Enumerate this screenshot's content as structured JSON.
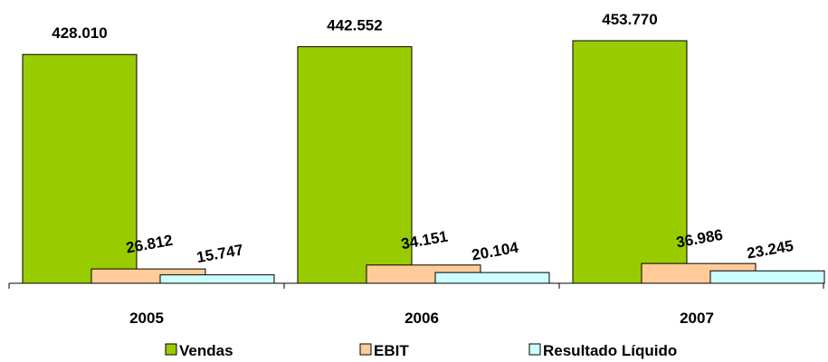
{
  "chart_data": {
    "type": "bar",
    "categories": [
      "2005",
      "2006",
      "2007"
    ],
    "series": [
      {
        "name": "Vendas",
        "values": [
          428010,
          442552,
          453770
        ],
        "labels": [
          "428.010",
          "442.552",
          "453.770"
        ],
        "color": "#99CC00"
      },
      {
        "name": "EBIT",
        "values": [
          26812,
          34151,
          36986
        ],
        "labels": [
          "26.812",
          "34.151",
          "36.986"
        ],
        "color": "#FFCC99"
      },
      {
        "name": "Resultado Líquido",
        "values": [
          15747,
          20104,
          23245
        ],
        "labels": [
          "15.747",
          "20.104",
          "23.245"
        ],
        "color": "#CCFFFF"
      }
    ],
    "title": "",
    "xlabel": "",
    "ylabel": "",
    "ylim": [
      0,
      453770
    ],
    "grid": false,
    "legend_position": "bottom"
  }
}
